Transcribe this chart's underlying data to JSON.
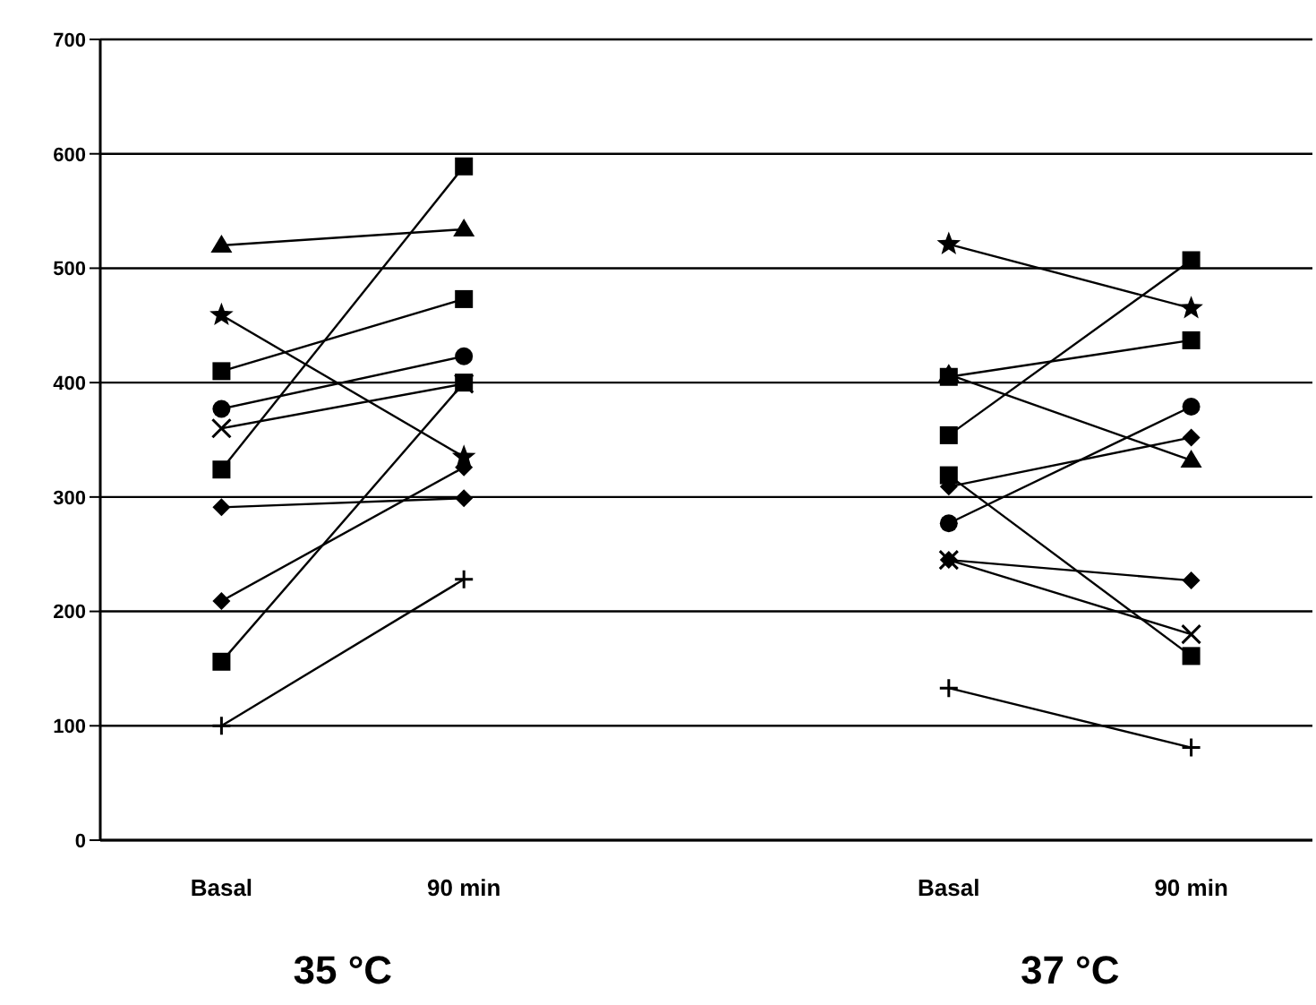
{
  "chart_data": {
    "type": "line",
    "categories": [
      "Basal",
      "90 min",
      null,
      "Basal",
      "90 min"
    ],
    "series": [
      {
        "color": "#000000",
        "marker": "triangle",
        "values": [
          520,
          534,
          null,
          407,
          332
        ]
      },
      {
        "color": "#000000",
        "marker": "square",
        "values": [
          324,
          589,
          null,
          319,
          161
        ]
      },
      {
        "color": "#000000",
        "marker": "square",
        "values": [
          410,
          473,
          null,
          354,
          507
        ]
      },
      {
        "color": "#000000",
        "marker": "star",
        "values": [
          459,
          335,
          null,
          521,
          465
        ]
      },
      {
        "color": "#000000",
        "marker": "circle",
        "values": [
          377,
          423,
          null,
          277,
          379
        ]
      },
      {
        "color": "#000000",
        "marker": "cross",
        "values": [
          360,
          399,
          null,
          245,
          180
        ]
      },
      {
        "color": "#000000",
        "marker": "diamond",
        "values": [
          291,
          299,
          null,
          309,
          352
        ]
      },
      {
        "color": "#000000",
        "marker": "diamond",
        "values": [
          209,
          326,
          null,
          245,
          227
        ]
      },
      {
        "color": "#000000",
        "marker": "square",
        "values": [
          156,
          400,
          null,
          405,
          437
        ]
      },
      {
        "color": "#000000",
        "marker": "plus",
        "values": [
          100,
          228,
          null,
          133,
          81
        ]
      }
    ],
    "ylim": [
      0,
      700
    ],
    "yticks": [
      0,
      100,
      200,
      300,
      400,
      500,
      600,
      700
    ],
    "grid": "y",
    "line_style": "solid",
    "annotations": [
      "35 °C",
      "37 °C"
    ]
  }
}
